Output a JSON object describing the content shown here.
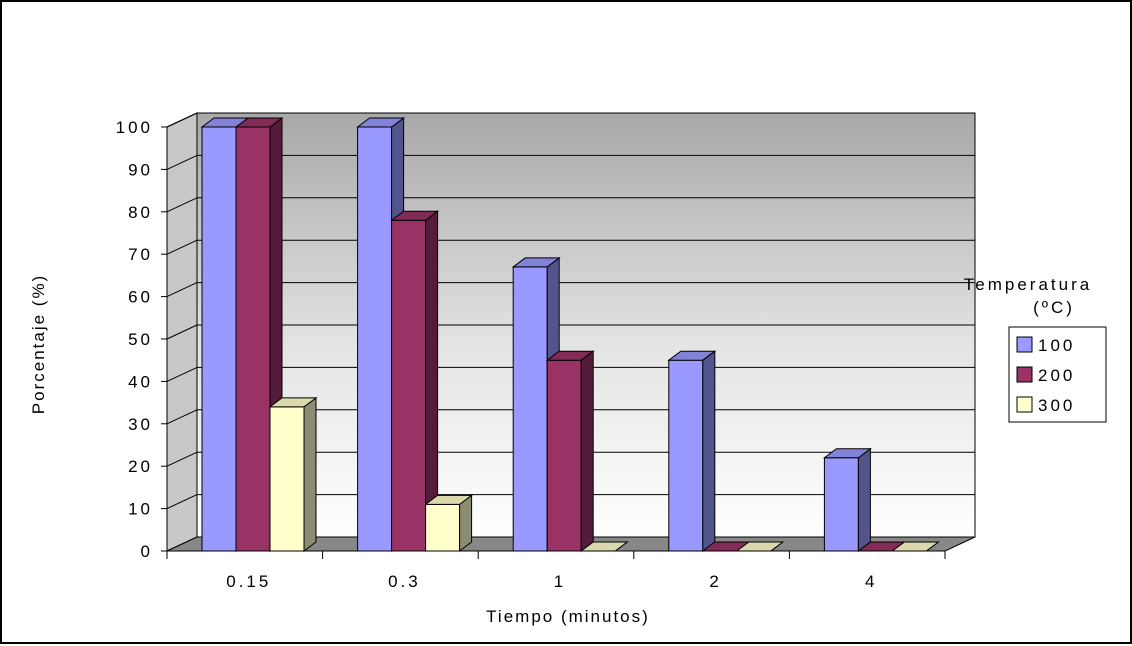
{
  "chart_data": {
    "type": "bar",
    "categories": [
      "0.15",
      "0.3",
      "1",
      "2",
      "4"
    ],
    "series": [
      {
        "name": "100",
        "values": [
          100,
          100,
          67,
          45,
          22
        ]
      },
      {
        "name": "200",
        "values": [
          100,
          78,
          45,
          0,
          0
        ]
      },
      {
        "name": "300",
        "values": [
          34,
          11,
          0,
          0,
          0
        ]
      }
    ],
    "xlabel": "Tiempo (minutos)",
    "ylabel": "Porcentaje (%)",
    "ylim": [
      0,
      100
    ],
    "yticks": [
      "0",
      "10",
      "20",
      "30",
      "40",
      "50",
      "60",
      "70",
      "80",
      "90",
      "100"
    ],
    "legend": {
      "title_line1": "Temperatura",
      "title_line2": "(ºC)",
      "placement": "right"
    },
    "grid": true,
    "three_d": true,
    "colors": {
      "100": "#9999ff",
      "200": "#993366",
      "300": "#ffffcc"
    }
  }
}
